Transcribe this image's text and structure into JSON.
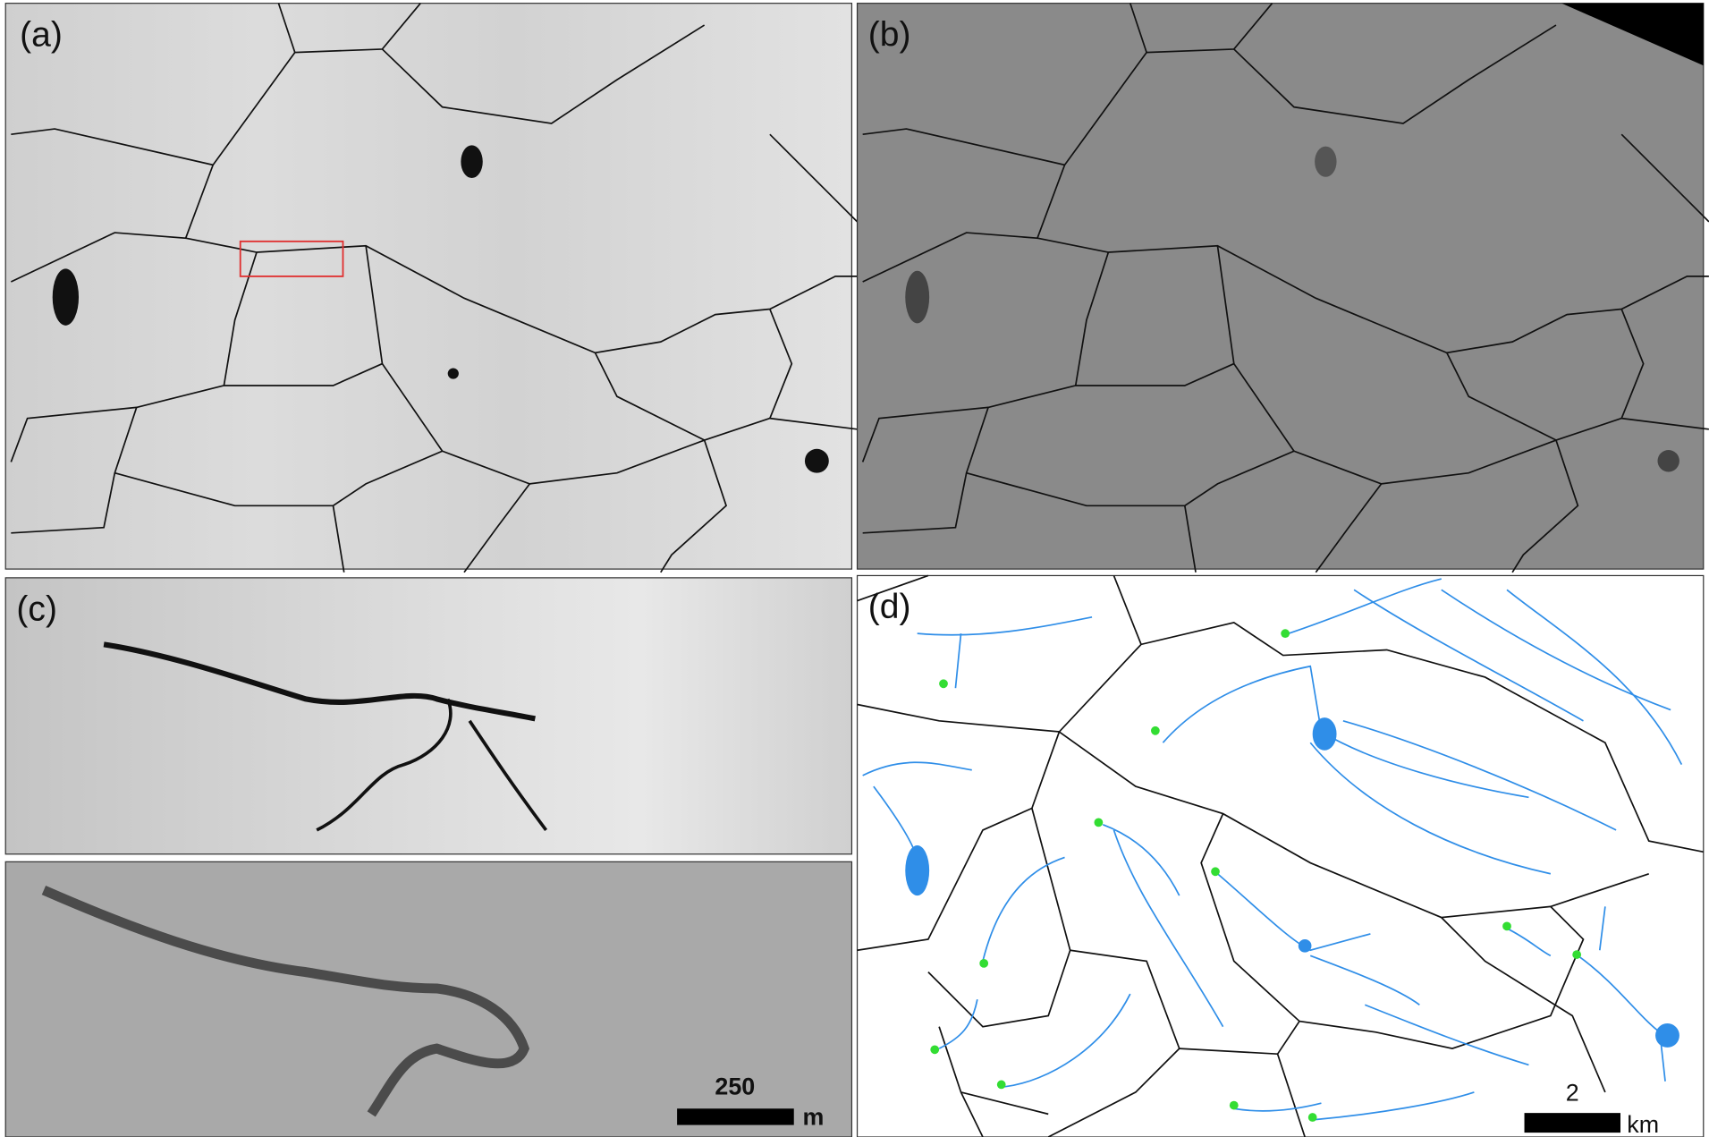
{
  "panels": [
    {
      "label": "(a)"
    },
    {
      "label": "(b)"
    },
    {
      "label": "(c)"
    },
    {
      "label": "(d)"
    }
  ],
  "scale_bars": [
    {
      "value": 250,
      "unit": "m"
    },
    {
      "value": 2,
      "unit": "km"
    }
  ]
}
